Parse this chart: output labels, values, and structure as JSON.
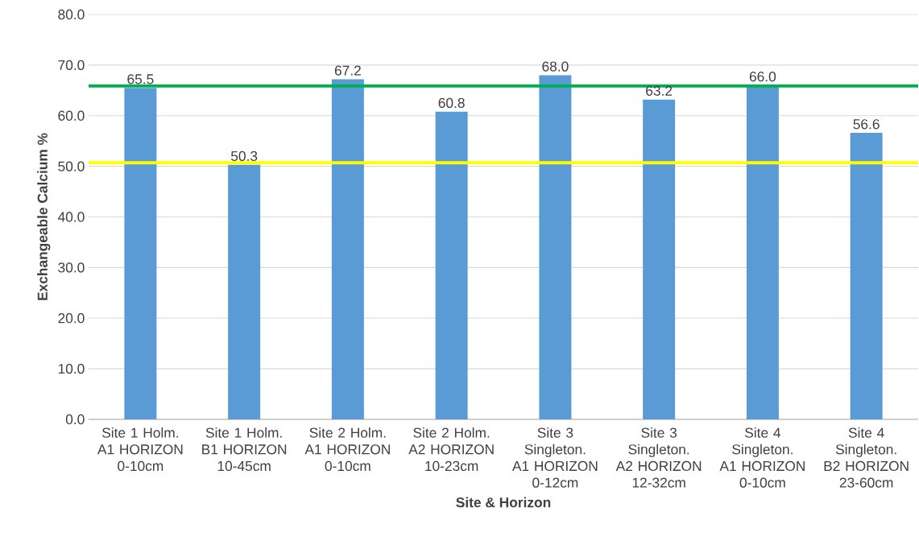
{
  "chart_data": {
    "type": "bar",
    "xlabel": "Site & Horizon",
    "ylabel": "Exchangeable Calcium %",
    "categories": [
      "Site 1 Holm. A1 HORIZON 0-10cm",
      "Site 1 Holm. B1 HORIZON 10-45cm",
      "Site 2 Holm. A1 HORIZON 0-10cm",
      "Site 2 Holm. A2 HORIZON 10-23cm",
      "Site 3 Singleton. A1 HORIZON 0-12cm",
      "Site 3 Singleton. A2 HORIZON 12-32cm",
      "Site 4 Singleton. A1 HORIZON 0-10cm",
      "Site 4 Singleton. B2 HORIZON 23-60cm"
    ],
    "values": [
      65.5,
      50.3,
      67.2,
      60.8,
      68.0,
      63.2,
      66.0,
      56.6
    ],
    "value_labels": [
      "65.5",
      "50.3",
      "67.2",
      "60.8",
      "68.0",
      "63.2",
      "66.0",
      "56.6"
    ],
    "color": "#5b9bd5",
    "ylim": [
      0,
      80
    ],
    "yticks": [
      {
        "value": 0,
        "label": "0.0"
      },
      {
        "value": 10,
        "label": "10.0"
      },
      {
        "value": 20,
        "label": "20.0"
      },
      {
        "value": 30,
        "label": "30.0"
      },
      {
        "value": 40,
        "label": "40.0"
      },
      {
        "value": 50,
        "label": "50.0"
      },
      {
        "value": 60,
        "label": "60.0"
      },
      {
        "value": 70,
        "label": "70.0"
      },
      {
        "value": 80,
        "label": "80.0"
      }
    ],
    "grid": "y",
    "ref_lines": [
      {
        "axis": "y",
        "value": 65.9,
        "color": "#00b050"
      },
      {
        "axis": "y",
        "value": 50.7,
        "color": "#ffff00"
      }
    ]
  }
}
